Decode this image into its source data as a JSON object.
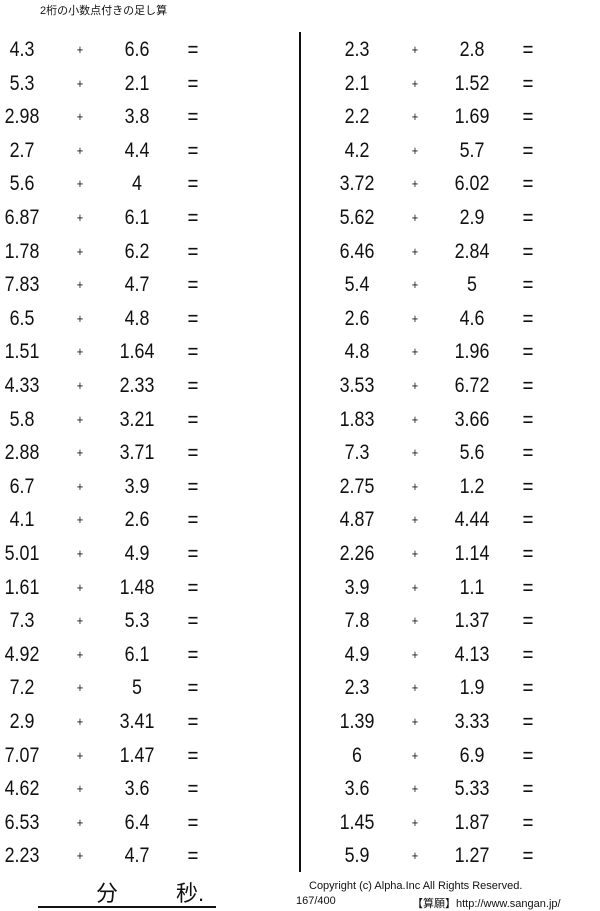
{
  "title": "2桁の小数点付きの足し算",
  "operator": "+",
  "equals": "=",
  "left_column": [
    [
      "4.3",
      "6.6"
    ],
    [
      "5.3",
      "2.1"
    ],
    [
      "2.98",
      "3.8"
    ],
    [
      "2.7",
      "4.4"
    ],
    [
      "5.6",
      "4"
    ],
    [
      "6.87",
      "6.1"
    ],
    [
      "1.78",
      "6.2"
    ],
    [
      "7.83",
      "4.7"
    ],
    [
      "6.5",
      "4.8"
    ],
    [
      "1.51",
      "1.64"
    ],
    [
      "4.33",
      "2.33"
    ],
    [
      "5.8",
      "3.21"
    ],
    [
      "2.88",
      "3.71"
    ],
    [
      "6.7",
      "3.9"
    ],
    [
      "4.1",
      "2.6"
    ],
    [
      "5.01",
      "4.9"
    ],
    [
      "1.61",
      "1.48"
    ],
    [
      "7.3",
      "5.3"
    ],
    [
      "4.92",
      "6.1"
    ],
    [
      "7.2",
      "5"
    ],
    [
      "2.9",
      "3.41"
    ],
    [
      "7.07",
      "1.47"
    ],
    [
      "4.62",
      "3.6"
    ],
    [
      "6.53",
      "6.4"
    ],
    [
      "2.23",
      "4.7"
    ]
  ],
  "right_column": [
    [
      "2.3",
      "2.8"
    ],
    [
      "2.1",
      "1.52"
    ],
    [
      "2.2",
      "1.69"
    ],
    [
      "4.2",
      "5.7"
    ],
    [
      "3.72",
      "6.02"
    ],
    [
      "5.62",
      "2.9"
    ],
    [
      "6.46",
      "2.84"
    ],
    [
      "5.4",
      "5"
    ],
    [
      "2.6",
      "4.6"
    ],
    [
      "4.8",
      "1.96"
    ],
    [
      "3.53",
      "6.72"
    ],
    [
      "1.83",
      "3.66"
    ],
    [
      "7.3",
      "5.6"
    ],
    [
      "2.75",
      "1.2"
    ],
    [
      "4.87",
      "4.44"
    ],
    [
      "2.26",
      "1.14"
    ],
    [
      "3.9",
      "1.1"
    ],
    [
      "7.8",
      "1.37"
    ],
    [
      "4.9",
      "4.13"
    ],
    [
      "2.3",
      "1.9"
    ],
    [
      "1.39",
      "3.33"
    ],
    [
      "6",
      "6.9"
    ],
    [
      "3.6",
      "5.33"
    ],
    [
      "1.45",
      "1.87"
    ],
    [
      "5.9",
      "1.27"
    ]
  ],
  "footer": {
    "minutes_label": "分",
    "seconds_label": "秒.",
    "copyright": "Copyright (c)  Alpha.Inc All Rights Reserved.",
    "page": "167/400",
    "url": "【算願】http://www.sangan.jp/"
  }
}
